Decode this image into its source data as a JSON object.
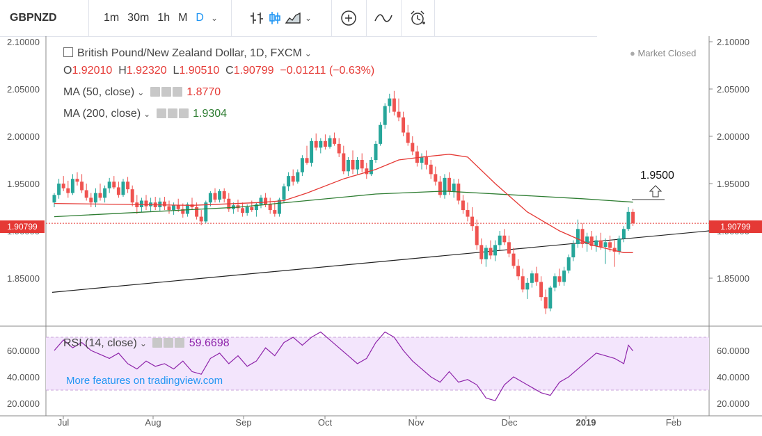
{
  "toolbar": {
    "symbol": "GBPNZD",
    "timeframes": [
      "1m",
      "30m",
      "1h",
      "M",
      "D"
    ],
    "active_timeframe": "D"
  },
  "legend": {
    "title": "British Pound/New Zealand Dollar, 1D, FXCM",
    "market_status": "Market Closed",
    "o_label": "O",
    "o_value": "1.92010",
    "h_label": "H",
    "h_value": "1.92320",
    "l_label": "L",
    "l_value": "1.90510",
    "c_label": "C",
    "c_value": "1.90799",
    "change": "−0.01211 (−0.63%)",
    "ma50_label": "MA (50, close)",
    "ma50_value": "1.8770",
    "ma200_label": "MA (200, close)",
    "ma200_value": "1.9304",
    "rsi_label": "RSI (14, close)",
    "rsi_value": "59.6698"
  },
  "watermark": "More features on tradingview.com",
  "annotation": {
    "text": "1.9500",
    "target": 1.95
  },
  "colors": {
    "up": "#26a69a",
    "down": "#ef5350",
    "ma50": "#e53935",
    "ma200": "#2e7d32",
    "rsi": "#8e24aa",
    "rsi_band": "#f3e5fc",
    "last_price": "#e53935"
  },
  "chart_data": {
    "type": "candlestick",
    "price_axis": {
      "ylim": [
        1.8,
        2.1
      ],
      "ticks": [
        "2.10000",
        "2.05000",
        "2.00000",
        "1.95000",
        "1.90000",
        "1.85000"
      ]
    },
    "last_price": "1.90799",
    "x_labels": [
      "Jul",
      "Aug",
      "Sep",
      "Oct",
      "Nov",
      "Dec",
      "2019",
      "Feb"
    ],
    "rsi_axis": {
      "ticks": [
        "60.0000",
        "40.0000",
        "20.0000"
      ],
      "band": [
        30,
        70
      ]
    },
    "candles": [
      [
        1.93,
        1.94,
        1.925,
        1.938
      ],
      [
        1.938,
        1.955,
        1.934,
        1.95
      ],
      [
        1.95,
        1.958,
        1.942,
        1.945
      ],
      [
        1.945,
        1.953,
        1.935,
        1.94
      ],
      [
        1.94,
        1.96,
        1.938,
        1.955
      ],
      [
        1.955,
        1.962,
        1.948,
        1.952
      ],
      [
        1.952,
        1.96,
        1.94,
        1.943
      ],
      [
        1.943,
        1.95,
        1.932,
        1.935
      ],
      [
        1.935,
        1.94,
        1.925,
        1.93
      ],
      [
        1.93,
        1.945,
        1.925,
        1.94
      ],
      [
        1.94,
        1.95,
        1.932,
        1.935
      ],
      [
        1.935,
        1.948,
        1.93,
        1.945
      ],
      [
        1.945,
        1.956,
        1.94,
        1.952
      ],
      [
        1.952,
        1.958,
        1.944,
        1.946
      ],
      [
        1.946,
        1.952,
        1.935,
        1.938
      ],
      [
        1.938,
        1.955,
        1.936,
        1.952
      ],
      [
        1.952,
        1.957,
        1.94,
        1.944
      ],
      [
        1.944,
        1.948,
        1.926,
        1.93
      ],
      [
        1.93,
        1.938,
        1.918,
        1.925
      ],
      [
        1.925,
        1.935,
        1.92,
        1.932
      ],
      [
        1.932,
        1.938,
        1.922,
        1.926
      ],
      [
        1.926,
        1.935,
        1.92,
        1.93
      ],
      [
        1.93,
        1.936,
        1.922,
        1.925
      ],
      [
        1.925,
        1.935,
        1.921,
        1.931
      ],
      [
        1.931,
        1.936,
        1.922,
        1.926
      ],
      [
        1.926,
        1.932,
        1.918,
        1.922
      ],
      [
        1.922,
        1.93,
        1.917,
        1.927
      ],
      [
        1.927,
        1.934,
        1.92,
        1.923
      ],
      [
        1.923,
        1.929,
        1.914,
        1.918
      ],
      [
        1.918,
        1.93,
        1.915,
        1.928
      ],
      [
        1.928,
        1.935,
        1.922,
        1.925
      ],
      [
        1.925,
        1.93,
        1.912,
        1.915
      ],
      [
        1.915,
        1.922,
        1.906,
        1.91
      ],
      [
        1.91,
        1.932,
        1.908,
        1.93
      ],
      [
        1.93,
        1.942,
        1.926,
        1.94
      ],
      [
        1.94,
        1.945,
        1.93,
        1.933
      ],
      [
        1.933,
        1.944,
        1.93,
        1.942
      ],
      [
        1.942,
        1.945,
        1.93,
        1.934
      ],
      [
        1.934,
        1.94,
        1.92,
        1.923
      ],
      [
        1.923,
        1.93,
        1.918,
        1.927
      ],
      [
        1.927,
        1.933,
        1.92,
        1.924
      ],
      [
        1.924,
        1.93,
        1.915,
        1.919
      ],
      [
        1.919,
        1.928,
        1.916,
        1.925
      ],
      [
        1.925,
        1.932,
        1.92,
        1.922
      ],
      [
        1.922,
        1.93,
        1.915,
        1.928
      ],
      [
        1.928,
        1.938,
        1.924,
        1.935
      ],
      [
        1.935,
        1.94,
        1.925,
        1.928
      ],
      [
        1.928,
        1.935,
        1.918,
        1.922
      ],
      [
        1.922,
        1.93,
        1.915,
        1.918
      ],
      [
        1.918,
        1.935,
        1.915,
        1.933
      ],
      [
        1.933,
        1.95,
        1.93,
        1.947
      ],
      [
        1.947,
        1.962,
        1.942,
        1.958
      ],
      [
        1.958,
        1.965,
        1.948,
        1.952
      ],
      [
        1.952,
        1.965,
        1.95,
        1.962
      ],
      [
        1.962,
        1.98,
        1.958,
        1.977
      ],
      [
        1.977,
        1.99,
        1.97,
        1.972
      ],
      [
        1.972,
        1.998,
        1.968,
        1.995
      ],
      [
        1.995,
        2.003,
        1.985,
        1.988
      ],
      [
        1.988,
        1.998,
        1.982,
        1.995
      ],
      [
        1.995,
        2.002,
        1.986,
        1.989
      ],
      [
        1.989,
        2.001,
        1.987,
        1.998
      ],
      [
        1.998,
        2.004,
        1.99,
        1.992
      ],
      [
        1.992,
        1.998,
        1.978,
        1.982
      ],
      [
        1.982,
        1.99,
        1.96,
        1.963
      ],
      [
        1.963,
        1.978,
        1.958,
        1.975
      ],
      [
        1.975,
        1.985,
        1.96,
        1.965
      ],
      [
        1.965,
        1.978,
        1.96,
        1.975
      ],
      [
        1.975,
        1.982,
        1.962,
        1.966
      ],
      [
        1.966,
        1.972,
        1.955,
        1.96
      ],
      [
        1.96,
        1.978,
        1.958,
        1.975
      ],
      [
        1.975,
        1.995,
        1.972,
        1.992
      ],
      [
        1.992,
        2.015,
        1.99,
        2.012
      ],
      [
        2.012,
        2.035,
        2.008,
        2.032
      ],
      [
        2.032,
        2.045,
        2.025,
        2.04
      ],
      [
        2.04,
        2.048,
        2.022,
        2.026
      ],
      [
        2.026,
        2.04,
        2.016,
        2.02
      ],
      [
        2.02,
        2.026,
        2.0,
        2.004
      ],
      [
        2.004,
        2.012,
        1.99,
        1.993
      ],
      [
        1.993,
        2.0,
        1.98,
        1.984
      ],
      [
        1.984,
        1.99,
        1.968,
        1.972
      ],
      [
        1.972,
        1.982,
        1.965,
        1.978
      ],
      [
        1.978,
        1.985,
        1.965,
        1.97
      ],
      [
        1.97,
        1.975,
        1.955,
        1.96
      ],
      [
        1.96,
        1.968,
        1.948,
        1.952
      ],
      [
        1.952,
        1.958,
        1.935,
        1.938
      ],
      [
        1.938,
        1.96,
        1.934,
        1.956
      ],
      [
        1.956,
        1.962,
        1.938,
        1.942
      ],
      [
        1.942,
        1.955,
        1.935,
        1.95
      ],
      [
        1.95,
        1.955,
        1.928,
        1.932
      ],
      [
        1.932,
        1.938,
        1.918,
        1.922
      ],
      [
        1.922,
        1.93,
        1.91,
        1.915
      ],
      [
        1.915,
        1.925,
        1.9,
        1.905
      ],
      [
        1.905,
        1.912,
        1.88,
        1.885
      ],
      [
        1.885,
        1.892,
        1.865,
        1.87
      ],
      [
        1.87,
        1.885,
        1.862,
        1.882
      ],
      [
        1.882,
        1.89,
        1.87,
        1.874
      ],
      [
        1.874,
        1.89,
        1.868,
        1.885
      ],
      [
        1.885,
        1.9,
        1.88,
        1.895
      ],
      [
        1.895,
        1.902,
        1.885,
        1.888
      ],
      [
        1.888,
        1.895,
        1.872,
        1.876
      ],
      [
        1.876,
        1.882,
        1.86,
        1.863
      ],
      [
        1.863,
        1.87,
        1.848,
        1.852
      ],
      [
        1.852,
        1.86,
        1.835,
        1.838
      ],
      [
        1.838,
        1.85,
        1.828,
        1.845
      ],
      [
        1.845,
        1.858,
        1.84,
        1.855
      ],
      [
        1.855,
        1.862,
        1.842,
        1.846
      ],
      [
        1.846,
        1.852,
        1.826,
        1.83
      ],
      [
        1.83,
        1.838,
        1.812,
        1.818
      ],
      [
        1.818,
        1.842,
        1.815,
        1.84
      ],
      [
        1.84,
        1.855,
        1.836,
        1.852
      ],
      [
        1.852,
        1.86,
        1.842,
        1.846
      ],
      [
        1.846,
        1.862,
        1.842,
        1.858
      ],
      [
        1.858,
        1.875,
        1.855,
        1.872
      ],
      [
        1.872,
        1.89,
        1.868,
        1.886
      ],
      [
        1.886,
        1.912,
        1.882,
        1.902
      ],
      [
        1.902,
        1.908,
        1.882,
        1.886
      ],
      [
        1.886,
        1.898,
        1.878,
        1.894
      ],
      [
        1.894,
        1.9,
        1.88,
        1.884
      ],
      [
        1.884,
        1.895,
        1.878,
        1.89
      ],
      [
        1.89,
        1.898,
        1.88,
        1.883
      ],
      [
        1.883,
        1.892,
        1.865,
        1.888
      ],
      [
        1.888,
        1.895,
        1.878,
        1.882
      ],
      [
        1.882,
        1.89,
        1.862,
        1.878
      ],
      [
        1.878,
        1.895,
        1.875,
        1.892
      ],
      [
        1.892,
        1.905,
        1.888,
        1.902
      ],
      [
        1.902,
        1.925,
        1.9,
        1.92
      ],
      [
        1.92,
        1.9232,
        1.9051,
        1.90799
      ]
    ],
    "ma50": [
      [
        0,
        1.929
      ],
      [
        15,
        1.928
      ],
      [
        30,
        1.927
      ],
      [
        45,
        1.93
      ],
      [
        50,
        1.932
      ],
      [
        55,
        1.94
      ],
      [
        63,
        1.955
      ],
      [
        70,
        1.965
      ],
      [
        75,
        1.975
      ],
      [
        80,
        1.978
      ],
      [
        86,
        1.981
      ],
      [
        90,
        1.978
      ],
      [
        96,
        1.95
      ],
      [
        103,
        1.92
      ],
      [
        110,
        1.9
      ],
      [
        117,
        1.885
      ],
      [
        124,
        1.877
      ],
      [
        126,
        1.877
      ]
    ],
    "ma200": [
      [
        0,
        1.915
      ],
      [
        20,
        1.92
      ],
      [
        40,
        1.925
      ],
      [
        55,
        1.932
      ],
      [
        70,
        1.939
      ],
      [
        85,
        1.942
      ],
      [
        100,
        1.938
      ],
      [
        115,
        1.934
      ],
      [
        126,
        1.9304
      ]
    ],
    "trendline": {
      "from": [
        0,
        1.835
      ],
      "to": [
        140,
        1.9
      ]
    },
    "rsi": [
      [
        0,
        60
      ],
      [
        2,
        68
      ],
      [
        4,
        62
      ],
      [
        6,
        66
      ],
      [
        8,
        60
      ],
      [
        10,
        57
      ],
      [
        12,
        54
      ],
      [
        14,
        58
      ],
      [
        16,
        50
      ],
      [
        18,
        46
      ],
      [
        20,
        52
      ],
      [
        22,
        48
      ],
      [
        24,
        50
      ],
      [
        26,
        46
      ],
      [
        28,
        52
      ],
      [
        30,
        44
      ],
      [
        32,
        42
      ],
      [
        34,
        54
      ],
      [
        36,
        58
      ],
      [
        38,
        50
      ],
      [
        40,
        56
      ],
      [
        42,
        48
      ],
      [
        44,
        52
      ],
      [
        46,
        62
      ],
      [
        48,
        56
      ],
      [
        50,
        66
      ],
      [
        52,
        70
      ],
      [
        54,
        64
      ],
      [
        56,
        70
      ],
      [
        58,
        74
      ],
      [
        60,
        68
      ],
      [
        62,
        62
      ],
      [
        64,
        56
      ],
      [
        66,
        50
      ],
      [
        68,
        54
      ],
      [
        70,
        66
      ],
      [
        72,
        74
      ],
      [
        74,
        70
      ],
      [
        76,
        60
      ],
      [
        78,
        52
      ],
      [
        80,
        46
      ],
      [
        82,
        40
      ],
      [
        84,
        36
      ],
      [
        86,
        44
      ],
      [
        88,
        36
      ],
      [
        90,
        38
      ],
      [
        92,
        34
      ],
      [
        94,
        24
      ],
      [
        96,
        22
      ],
      [
        98,
        34
      ],
      [
        100,
        40
      ],
      [
        102,
        36
      ],
      [
        104,
        32
      ],
      [
        106,
        28
      ],
      [
        108,
        26
      ],
      [
        110,
        36
      ],
      [
        112,
        40
      ],
      [
        114,
        46
      ],
      [
        116,
        52
      ],
      [
        118,
        58
      ],
      [
        120,
        56
      ],
      [
        122,
        54
      ],
      [
        124,
        50
      ],
      [
        125,
        64
      ],
      [
        126,
        59.67
      ]
    ]
  }
}
